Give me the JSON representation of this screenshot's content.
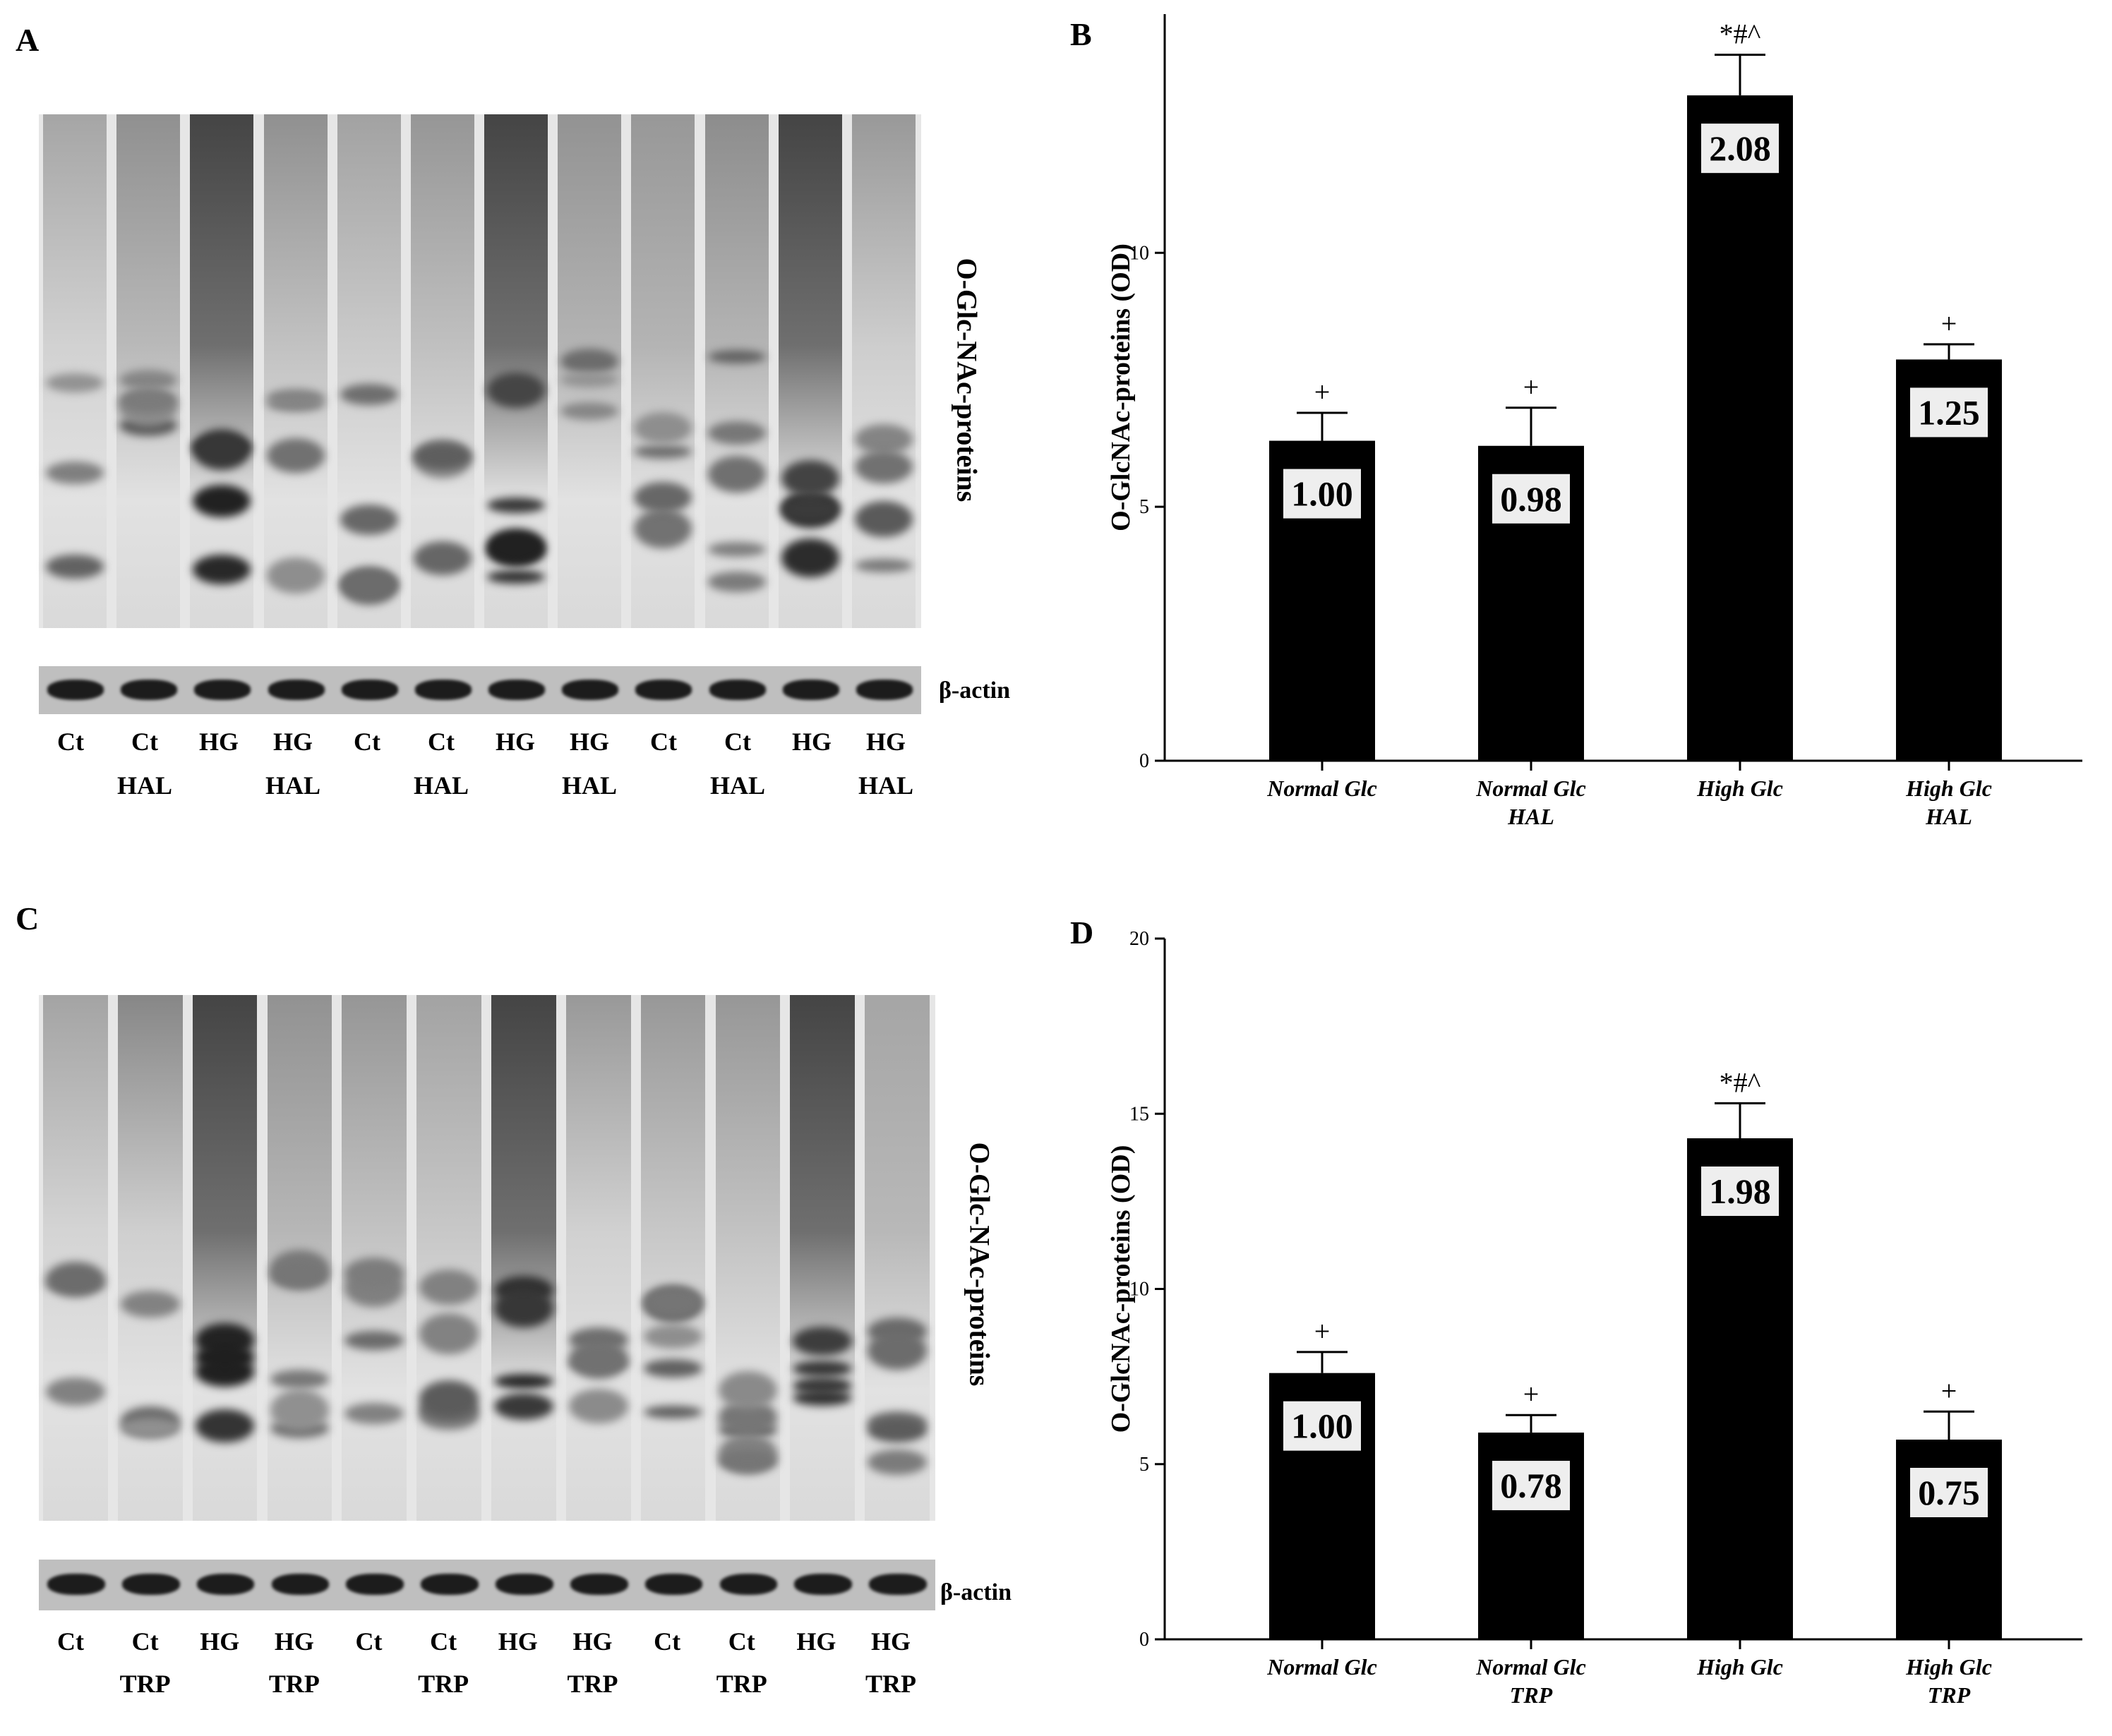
{
  "panels": {
    "a": {
      "letter": "A"
    },
    "b": {
      "letter": "B"
    },
    "c": {
      "letter": "C"
    },
    "d": {
      "letter": "D"
    }
  },
  "blots": {
    "a": {
      "protein_label": "O-Glc-NAc-proteins",
      "actin_label": "β-actin",
      "lanes_top": [
        "Ct",
        "Ct",
        "HG",
        "HG",
        "Ct",
        "Ct",
        "HG",
        "HG",
        "Ct",
        "Ct",
        "HG",
        "HG"
      ],
      "lanes_bottom": [
        "",
        "HAL",
        "",
        "HAL",
        "",
        "HAL",
        "",
        "HAL",
        "",
        "HAL",
        "",
        "HAL"
      ]
    },
    "c": {
      "protein_label": "O-Glc-NAc-proteins",
      "actin_label": "β-actin",
      "lanes_top": [
        "Ct",
        "Ct",
        "HG",
        "HG",
        "Ct",
        "Ct",
        "HG",
        "HG",
        "Ct",
        "Ct",
        "HG",
        "HG"
      ],
      "lanes_bottom": [
        "",
        "TRP",
        "",
        "TRP",
        "",
        "TRP",
        "",
        "TRP",
        "",
        "TRP",
        "",
        "TRP"
      ]
    }
  },
  "chart_data": [
    {
      "panel": "B",
      "type": "bar",
      "ylabel": "O-GlcNAc-proteins (OD)",
      "ylim": [
        0,
        14.7
      ],
      "yticks": [
        0,
        5,
        10
      ],
      "categories": [
        [
          "Normal Glc"
        ],
        [
          "Normal Glc",
          "HAL"
        ],
        [
          "High Glc"
        ],
        [
          "High Glc",
          "HAL"
        ]
      ],
      "values": [
        6.3,
        6.2,
        13.1,
        7.9
      ],
      "errors": [
        0.55,
        0.75,
        0.8,
        0.3
      ],
      "ratio_labels": [
        "1.00",
        "0.98",
        "2.08",
        "1.25"
      ],
      "significance": [
        "+",
        "+",
        "*#^",
        "+"
      ]
    },
    {
      "panel": "D",
      "type": "bar",
      "ylabel": "O-GlcNAc-proteins (OD)",
      "ylim": [
        0,
        20
      ],
      "yticks": [
        0,
        5,
        10,
        15,
        20
      ],
      "categories": [
        [
          "Normal Glc"
        ],
        [
          "Normal Glc",
          "TRP"
        ],
        [
          "High Glc"
        ],
        [
          "High Glc",
          "TRP"
        ]
      ],
      "values": [
        7.6,
        5.9,
        14.3,
        5.7
      ],
      "errors": [
        0.6,
        0.5,
        1.0,
        0.8
      ],
      "ratio_labels": [
        "1.00",
        "0.78",
        "1.98",
        "0.75"
      ],
      "significance": [
        "+",
        "+",
        "*#^",
        "+"
      ]
    }
  ]
}
